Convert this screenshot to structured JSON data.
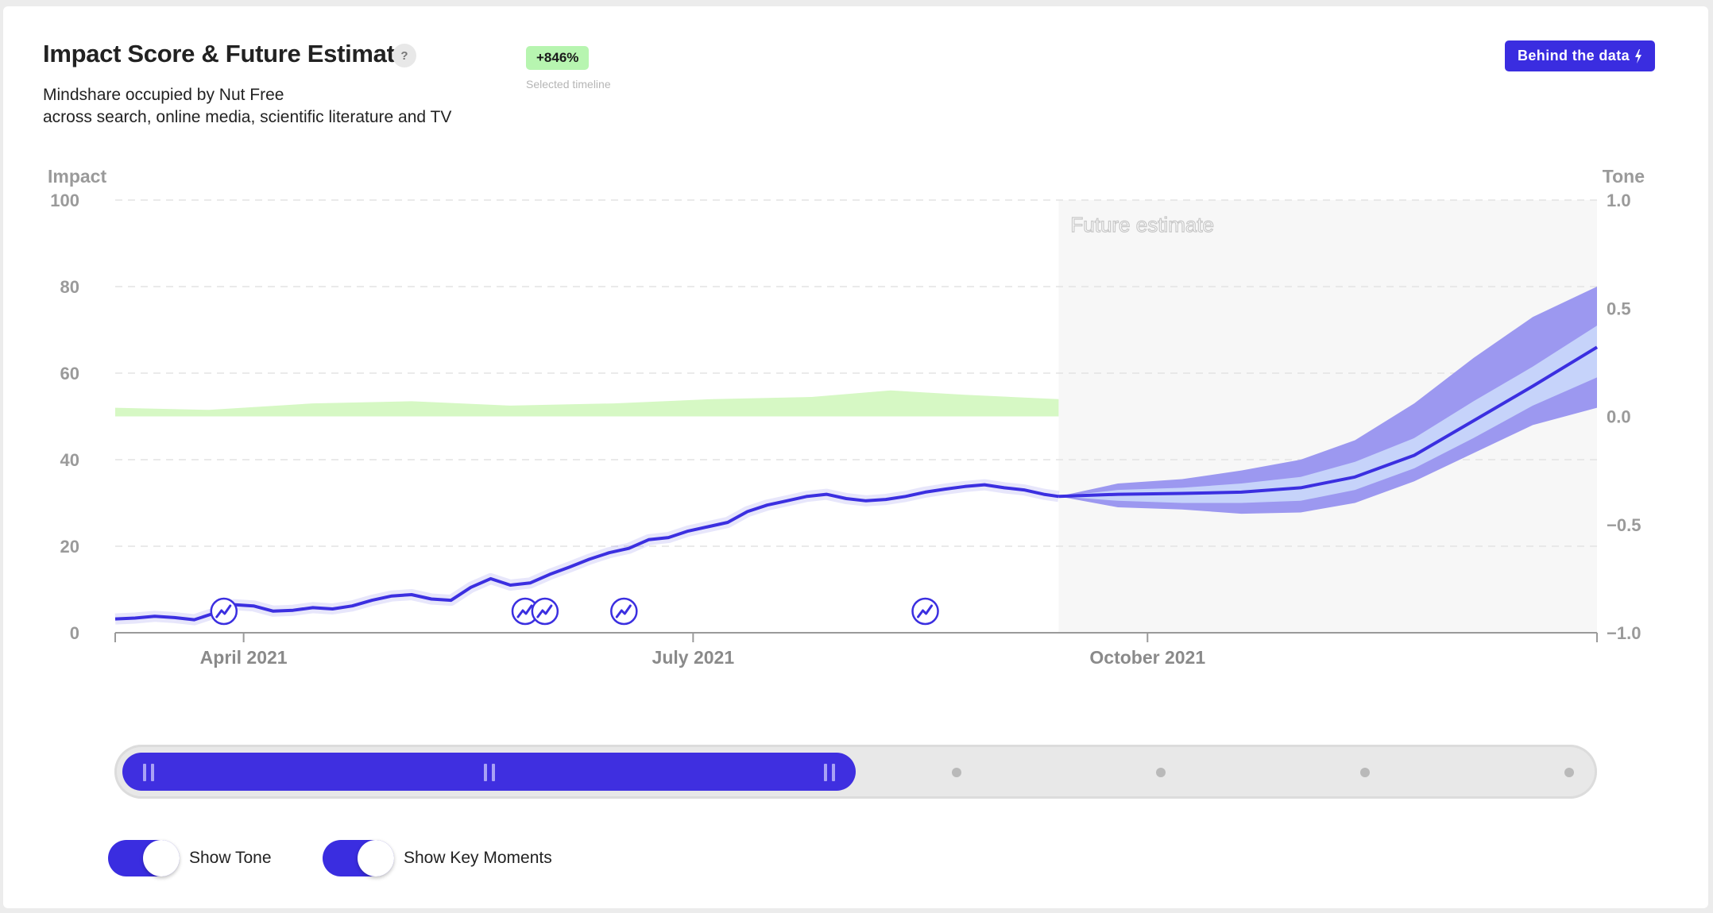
{
  "header": {
    "title": "Impact Score & Future Estimate",
    "help_label": "?",
    "subtitle_line1": "Mindshare occupied by Nut Free",
    "subtitle_line2": "across search, online media, scientific literature and TV",
    "badge": "+846%",
    "badge_caption": "Selected timeline",
    "behind_button": "Behind the data",
    "behind_icon": "lightning-icon"
  },
  "colors": {
    "impact_line": "#3b2fe0",
    "tone_area": "#d6f8c4",
    "forecast_outer": "#9c98f0",
    "forecast_inner": "#c6d3fa",
    "future_bg": "#f7f7f7",
    "accent": "#3a2de0"
  },
  "chart_data": {
    "type": "line",
    "title": "Impact Score & Future Estimate",
    "ylabel": "Impact",
    "y2label": "Tone",
    "ylim": [
      0,
      100
    ],
    "y2lim": [
      -1.0,
      1.0
    ],
    "yticks": [
      "0",
      "20",
      "40",
      "60",
      "80",
      "100"
    ],
    "y2ticks": [
      "−1.0",
      "−0.5",
      "0.0",
      "0.5",
      "1.0"
    ],
    "xticks": [
      "April 2021",
      "July 2021",
      "October 2021"
    ],
    "grid": true,
    "future_label": "Future estimate",
    "series": [
      {
        "name": "Impact",
        "x": [
          "2021-03-06",
          "2021-03-10",
          "2021-03-14",
          "2021-03-18",
          "2021-03-22",
          "2021-03-26",
          "2021-03-30",
          "2021-04-03",
          "2021-04-07",
          "2021-04-11",
          "2021-04-15",
          "2021-04-19",
          "2021-04-23",
          "2021-04-27",
          "2021-05-01",
          "2021-05-05",
          "2021-05-09",
          "2021-05-13",
          "2021-05-17",
          "2021-05-21",
          "2021-05-25",
          "2021-05-29",
          "2021-06-02",
          "2021-06-06",
          "2021-06-10",
          "2021-06-14",
          "2021-06-18",
          "2021-06-22",
          "2021-06-26",
          "2021-06-30",
          "2021-07-04",
          "2021-07-08",
          "2021-07-12",
          "2021-07-16",
          "2021-07-20",
          "2021-07-24",
          "2021-07-28",
          "2021-08-01",
          "2021-08-05",
          "2021-08-09",
          "2021-08-13",
          "2021-08-17",
          "2021-08-21",
          "2021-08-25",
          "2021-08-29",
          "2021-09-02",
          "2021-09-06",
          "2021-09-10",
          "2021-09-13"
        ],
        "values": [
          3.2,
          3.4,
          3.8,
          3.5,
          3.0,
          4.5,
          6.5,
          6.2,
          5.0,
          5.2,
          5.8,
          5.5,
          6.2,
          7.5,
          8.5,
          8.8,
          7.8,
          7.5,
          10.5,
          12.5,
          11.0,
          11.5,
          13.5,
          15.2,
          17.0,
          18.5,
          19.5,
          21.5,
          22.0,
          23.5,
          24.5,
          25.5,
          28.0,
          29.5,
          30.5,
          31.5,
          32.0,
          31.0,
          30.5,
          30.8,
          31.5,
          32.5,
          33.2,
          33.8,
          34.2,
          33.5,
          33.0,
          32.0,
          31.5
        ]
      },
      {
        "name": "Tone",
        "x": [
          "2021-03-06",
          "2021-03-25",
          "2021-04-15",
          "2021-05-05",
          "2021-05-25",
          "2021-06-15",
          "2021-07-05",
          "2021-07-25",
          "2021-08-10",
          "2021-08-25",
          "2021-09-13"
        ],
        "values": [
          0.04,
          0.03,
          0.06,
          0.07,
          0.05,
          0.06,
          0.08,
          0.09,
          0.12,
          0.1,
          0.08
        ]
      },
      {
        "name": "Future estimate",
        "x": [
          "2021-09-13",
          "2021-09-25",
          "2021-10-08",
          "2021-10-20",
          "2021-11-01",
          "2021-11-12",
          "2021-11-24",
          "2021-12-06",
          "2021-12-18",
          "2021-12-31"
        ],
        "values": [
          31.5,
          32.0,
          32.2,
          32.5,
          33.5,
          36.0,
          41.0,
          49.0,
          57.0,
          66.0
        ],
        "lower": [
          31.5,
          29.0,
          28.5,
          27.5,
          27.8,
          30.0,
          35.0,
          41.5,
          48.0,
          52.0
        ],
        "upper": [
          31.5,
          34.5,
          35.5,
          37.5,
          40.0,
          44.5,
          53.0,
          63.5,
          73.0,
          80.0
        ],
        "inner_lower": [
          31.5,
          30.5,
          30.0,
          30.0,
          30.5,
          33.0,
          38.0,
          45.0,
          52.5,
          59.0
        ],
        "inner_upper": [
          31.5,
          33.0,
          33.5,
          34.5,
          36.0,
          39.5,
          45.0,
          53.5,
          61.5,
          71.0
        ]
      }
    ],
    "key_moments": [
      "2021-03-28",
      "2021-05-28",
      "2021-06-01",
      "2021-06-17",
      "2021-08-17"
    ]
  },
  "controls": {
    "slider_selected_fraction": 0.5,
    "show_tone_label": "Show Tone",
    "show_tone_on": true,
    "show_key_moments_label": "Show Key Moments",
    "show_key_moments_on": true
  }
}
